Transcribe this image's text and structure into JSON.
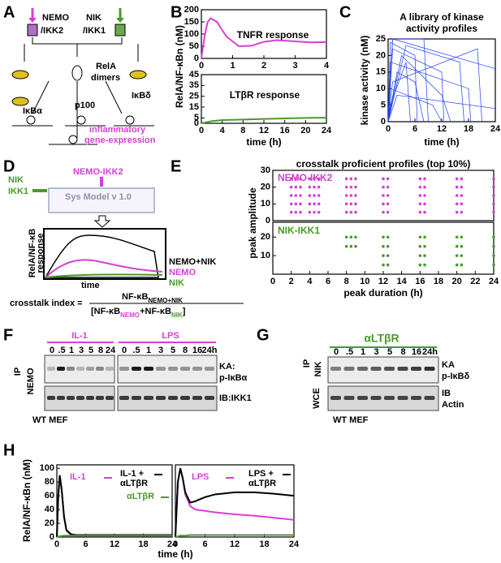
{
  "panel_labels": [
    "A",
    "B",
    "C",
    "D",
    "E",
    "F",
    "G",
    "H"
  ],
  "diagram_a": {
    "nemo": "NEMO",
    "ikk2": "/IKK2",
    "nik": "NIK",
    "ikk1": "/IKK1",
    "rela": "RelA",
    "dimers": "dimers",
    "ikbd": "IκBδ",
    "ikba": "IκBα",
    "p100": "p100",
    "inflammatory": "inflammatory",
    "gene": "gene-expression"
  },
  "diagram_d": {
    "nik": "NIK",
    "ikk1": "IKK1",
    "nemo_ikk2": "NEMO-IKK2",
    "model": "Sys Model v 1.0",
    "y_label_1": "RelA/NF-κB",
    "y_label_2": "response",
    "x_label": "time",
    "leg_both": "NEMO+NIK",
    "leg_nemo": "NEMO",
    "leg_nik": "NIK",
    "index": "crosstalk index =",
    "num": "NF-κB",
    "num_sub": "NEMO+NIK",
    "den_a": "[NF-κB",
    "den_a_sub": "NEMO",
    "den_b": "+NF-κB",
    "den_b_sub": "NIK",
    "den_c": "]"
  },
  "chart_data": [
    {
      "type": "line",
      "y_label": "RelA/NF-κBn (nM)",
      "annotation": "TNFR response",
      "xlim": [
        0,
        4
      ],
      "xticks": [
        0,
        1,
        2,
        3,
        4
      ],
      "ylim": [
        0,
        200
      ],
      "yticks": [
        0,
        50,
        100,
        150,
        200
      ],
      "series": [
        {
          "color": "#d63fd6",
          "x": [
            0,
            0.1,
            0.2,
            0.3,
            0.5,
            0.8,
            1.2,
            1.6,
            2.0,
            2.4,
            3.0,
            3.5,
            4.0
          ],
          "values": [
            0,
            90,
            150,
            165,
            150,
            90,
            50,
            52,
            68,
            75,
            70,
            66,
            67
          ]
        }
      ]
    },
    {
      "type": "line",
      "x_label": "time (h)",
      "annotation": "LTβR response",
      "xlim": [
        0,
        24
      ],
      "xticks": [
        0,
        4,
        8,
        12,
        16,
        20,
        24
      ],
      "ylim": [
        0,
        45
      ],
      "yticks": [
        0,
        5,
        15,
        25,
        35,
        45
      ],
      "series": [
        {
          "color": "#4a9a2a",
          "x": [
            0,
            2,
            4,
            8,
            12,
            16,
            20,
            24
          ],
          "values": [
            0,
            2,
            3,
            3.5,
            4,
            4.5,
            5,
            5.2
          ]
        }
      ]
    },
    {
      "type": "line",
      "title": [
        "A library of kinase",
        "activity profiles"
      ],
      "x_label": "time (h)",
      "y_label": "kinase activity (nM)",
      "xlim": [
        0,
        24
      ],
      "xticks": [
        0,
        6,
        12,
        18,
        24
      ],
      "ylim": [
        0,
        25
      ],
      "yticks": [
        0,
        5,
        10,
        15,
        20,
        25
      ],
      "series": [
        {
          "color": "#1e3cff",
          "x": [
            0,
            0.5,
            6,
            6.5
          ],
          "values": [
            0,
            24,
            20,
            0
          ]
        },
        {
          "color": "#1e3cff",
          "x": [
            0,
            1,
            12,
            12.5
          ],
          "values": [
            0,
            22,
            15,
            0
          ]
        },
        {
          "color": "#1e3cff",
          "x": [
            0,
            0.5,
            18,
            18.5
          ],
          "values": [
            0,
            18,
            10,
            0
          ]
        },
        {
          "color": "#1e3cff",
          "x": [
            0,
            1,
            24
          ],
          "values": [
            0,
            25,
            16
          ]
        },
        {
          "color": "#1e3cff",
          "x": [
            0,
            2,
            6,
            8
          ],
          "values": [
            0,
            15,
            12,
            0
          ]
        },
        {
          "color": "#1e3cff",
          "x": [
            0,
            3,
            12,
            14
          ],
          "values": [
            0,
            20,
            8,
            0
          ]
        },
        {
          "color": "#1e3cff",
          "x": [
            0,
            0.5,
            10,
            12
          ],
          "values": [
            0,
            10,
            5,
            0
          ]
        },
        {
          "color": "#1e3cff",
          "x": [
            0,
            4,
            16,
            17
          ],
          "values": [
            0,
            23,
            18,
            0
          ]
        },
        {
          "color": "#1e3cff",
          "x": [
            0,
            1,
            20,
            21
          ],
          "values": [
            0,
            12,
            22,
            0
          ]
        },
        {
          "color": "#1e3cff",
          "x": [
            0,
            2,
            24
          ],
          "values": [
            0,
            8,
            4
          ]
        },
        {
          "color": "#1e3cff",
          "x": [
            0,
            0.5,
            4,
            5
          ],
          "values": [
            0,
            5,
            18,
            0
          ]
        },
        {
          "color": "#1e3cff",
          "x": [
            0,
            1,
            8,
            9
          ],
          "values": [
            0,
            25,
            25,
            0
          ]
        }
      ]
    },
    {
      "type": "scatter",
      "title": "crosstalk proficient profiles (top 10%)",
      "annotation": "NEMO-IKK2",
      "y_label": "peak amplitude",
      "color": "#d63fd6",
      "xlim": [
        0,
        24
      ],
      "ylim": [
        0,
        30
      ],
      "yticks": [
        0,
        10,
        20,
        30
      ],
      "points": [
        [
          2,
          5
        ],
        [
          2,
          10
        ],
        [
          2,
          15
        ],
        [
          2,
          20
        ],
        [
          2,
          25
        ],
        [
          2.5,
          5
        ],
        [
          2.5,
          10
        ],
        [
          2.5,
          15
        ],
        [
          2.5,
          20
        ],
        [
          2.5,
          25
        ],
        [
          3,
          5
        ],
        [
          3,
          10
        ],
        [
          3,
          15
        ],
        [
          3,
          20
        ],
        [
          3,
          25
        ],
        [
          4,
          5
        ],
        [
          4,
          10
        ],
        [
          4,
          15
        ],
        [
          4,
          20
        ],
        [
          4,
          25
        ],
        [
          4.5,
          5
        ],
        [
          4.5,
          10
        ],
        [
          4.5,
          15
        ],
        [
          4.5,
          20
        ],
        [
          4.5,
          25
        ],
        [
          5,
          5
        ],
        [
          5,
          10
        ],
        [
          5,
          15
        ],
        [
          5,
          20
        ],
        [
          5,
          25
        ],
        [
          8,
          5
        ],
        [
          8,
          10
        ],
        [
          8,
          15
        ],
        [
          8,
          20
        ],
        [
          8,
          25
        ],
        [
          8.5,
          5
        ],
        [
          8.5,
          10
        ],
        [
          8.5,
          15
        ],
        [
          8.5,
          20
        ],
        [
          8.5,
          25
        ],
        [
          9,
          5
        ],
        [
          9,
          10
        ],
        [
          9,
          15
        ],
        [
          9,
          20
        ],
        [
          9,
          25
        ],
        [
          12,
          5
        ],
        [
          12,
          10
        ],
        [
          12,
          15
        ],
        [
          12,
          20
        ],
        [
          12,
          25
        ],
        [
          12.5,
          5
        ],
        [
          12.5,
          10
        ],
        [
          12.5,
          15
        ],
        [
          12.5,
          20
        ],
        [
          12.5,
          25
        ],
        [
          16,
          5
        ],
        [
          16,
          10
        ],
        [
          16,
          15
        ],
        [
          16,
          20
        ],
        [
          16,
          25
        ],
        [
          16.5,
          5
        ],
        [
          16.5,
          10
        ],
        [
          16.5,
          15
        ],
        [
          16.5,
          20
        ],
        [
          16.5,
          25
        ],
        [
          20,
          5
        ],
        [
          20,
          10
        ],
        [
          20,
          15
        ],
        [
          20,
          20
        ],
        [
          20,
          25
        ],
        [
          20.5,
          5
        ],
        [
          20.5,
          10
        ],
        [
          20.5,
          15
        ],
        [
          20.5,
          20
        ],
        [
          20.5,
          25
        ],
        [
          24,
          5
        ],
        [
          24,
          10
        ],
        [
          24,
          15
        ],
        [
          24,
          20
        ],
        [
          24,
          25
        ]
      ]
    },
    {
      "type": "scatter",
      "annotation": "NIK-IKK1",
      "x_label": "peak duration (h)",
      "color": "#4a9a2a",
      "xlim": [
        0,
        24
      ],
      "xticks": [
        0,
        2,
        4,
        6,
        8,
        10,
        12,
        14,
        16,
        18,
        20,
        22,
        24
      ],
      "ylim": [
        0,
        28
      ],
      "yticks": [
        10,
        20
      ],
      "points": [
        [
          8,
          15
        ],
        [
          8,
          20
        ],
        [
          8.5,
          15
        ],
        [
          8.5,
          20
        ],
        [
          9,
          15
        ],
        [
          9,
          20
        ],
        [
          12,
          5
        ],
        [
          12,
          10
        ],
        [
          12,
          15
        ],
        [
          12,
          20
        ],
        [
          12.5,
          5
        ],
        [
          12.5,
          10
        ],
        [
          12.5,
          15
        ],
        [
          12.5,
          20
        ],
        [
          16,
          5
        ],
        [
          16,
          10
        ],
        [
          16,
          15
        ],
        [
          16,
          20
        ],
        [
          16.5,
          5
        ],
        [
          16.5,
          10
        ],
        [
          16.5,
          15
        ],
        [
          16.5,
          20
        ],
        [
          20,
          5
        ],
        [
          20,
          10
        ],
        [
          20,
          15
        ],
        [
          20,
          20
        ],
        [
          20.5,
          5
        ],
        [
          20.5,
          10
        ],
        [
          20.5,
          15
        ],
        [
          20.5,
          20
        ],
        [
          24,
          5
        ],
        [
          24,
          10
        ],
        [
          24,
          15
        ],
        [
          24,
          20
        ]
      ]
    },
    {
      "type": "line",
      "y_label": "RelA/NF-κBn (nM)",
      "x_label": "time (h)",
      "xlim": [
        0,
        24
      ],
      "xticks": [
        0,
        6,
        12,
        18,
        24
      ],
      "ylim": [
        0,
        105
      ],
      "yticks": [
        0,
        20,
        40,
        60,
        80,
        100
      ],
      "series": [
        {
          "name": [
            "IL-1"
          ],
          "color": "#d63fd6",
          "x": [
            0,
            0.3,
            0.6,
            1,
            1.5,
            2,
            3,
            4,
            6,
            12,
            18,
            24
          ],
          "values": [
            0,
            58,
            88,
            68,
            28,
            9,
            3,
            2,
            2,
            2,
            2,
            2
          ]
        },
        {
          "name": [
            "IL-1 +",
            "αLTβR"
          ],
          "color": "#000000",
          "x": [
            0,
            0.3,
            0.6,
            1,
            1.5,
            2,
            3,
            4,
            6,
            12,
            18,
            24
          ],
          "values": [
            0,
            60,
            90,
            70,
            30,
            10,
            4,
            3,
            3,
            3,
            3,
            3
          ]
        },
        {
          "name": [
            "αLTβR"
          ],
          "color": "#4a9a2a",
          "x": [
            0,
            0.3,
            0.6,
            1,
            1.5,
            2,
            3,
            4,
            6,
            12,
            18,
            24
          ],
          "values": [
            0,
            1,
            1,
            1.5,
            2,
            2,
            2,
            2,
            2,
            2,
            2,
            2
          ]
        }
      ]
    },
    {
      "type": "line",
      "xlim": [
        0,
        24
      ],
      "xticks": [
        0,
        6,
        12,
        18,
        24
      ],
      "ylim": [
        0,
        105
      ],
      "series": [
        {
          "name": [
            "LPS"
          ],
          "color": "#d63fd6",
          "x": [
            0,
            0.5,
            1,
            1.5,
            2,
            3,
            4,
            6,
            8,
            12,
            16,
            20,
            24
          ],
          "values": [
            0,
            80,
            100,
            85,
            62,
            45,
            40,
            38,
            36,
            33,
            31,
            28,
            25
          ]
        },
        {
          "name": [
            "LPS +",
            "αLTβR"
          ],
          "color": "#000000",
          "x": [
            0,
            0.5,
            1,
            1.5,
            2,
            3,
            4,
            6,
            8,
            12,
            16,
            20,
            24
          ],
          "values": [
            0,
            80,
            100,
            85,
            65,
            50,
            52,
            58,
            62,
            65,
            65,
            63,
            60
          ]
        },
        {
          "color": "#4a9a2a",
          "x": [
            0,
            0.5,
            1,
            1.5,
            2,
            3,
            4,
            6,
            8,
            12,
            16,
            20,
            24
          ],
          "values": [
            0,
            1,
            2,
            2,
            2,
            3,
            3,
            3,
            3,
            3,
            3,
            3,
            3
          ]
        }
      ]
    }
  ],
  "blot_f": {
    "il1": "IL-1",
    "lps": "LPS",
    "il1_lanes": [
      "0",
      ".5",
      "1",
      "3",
      "5",
      "8",
      "24"
    ],
    "lps_lanes": [
      "0",
      ".5",
      "1",
      "3",
      "5",
      "8",
      "16",
      "24h"
    ],
    "ip": "IP",
    "nemo": "NEMO",
    "ka": "KA:",
    "substrate": "p-IκBα",
    "ib": "IB:IKK1",
    "cell": "WT MEF"
  },
  "blot_g": {
    "treatment": "αLTβR",
    "lanes": [
      "0",
      ".5",
      "1",
      "3",
      "5",
      "8",
      "16",
      "24h"
    ],
    "ip": "IP",
    "nik": "NIK",
    "ka": "KA",
    "substrate": "p-IκBδ",
    "wce": "WCE",
    "ib": "IB",
    "actin": "Actin",
    "cell": "WT MEF"
  }
}
